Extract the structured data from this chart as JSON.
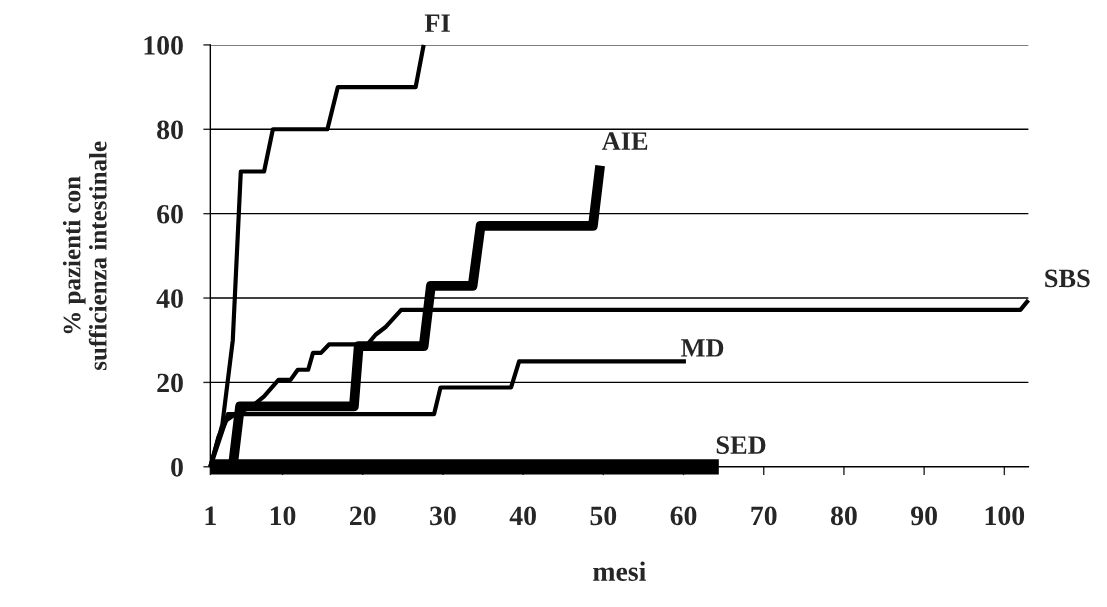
{
  "chart_data": {
    "type": "line",
    "xlabel": "mesi",
    "ylabel": "% pazienti con\nsufficienza intestinale",
    "xlim": [
      1,
      103
    ],
    "xticks": [
      1,
      10,
      20,
      30,
      40,
      50,
      60,
      70,
      80,
      90,
      100
    ],
    "ylim": [
      0,
      100
    ],
    "yticks": [
      0,
      20,
      40,
      60,
      80,
      100
    ],
    "grid": "y",
    "legend": false,
    "marker": "none",
    "line_style": "solid",
    "series": [
      {
        "name": "FI",
        "color": "#000000",
        "x": [
          1,
          2.5,
          3.8,
          4.3,
          4.8,
          7.7,
          8.8,
          15.6,
          16.9,
          26.6,
          27.6
        ],
        "values": [
          0,
          10,
          30,
          50,
          70,
          70,
          80,
          80,
          90,
          90,
          100
        ]
      },
      {
        "name": "AIE",
        "color": "#000000",
        "x": [
          3.8,
          4.7,
          18.9,
          19.5,
          27.6,
          28.5,
          33.7,
          34.7,
          48.7,
          49.6
        ],
        "values": [
          0,
          14.3,
          14.3,
          28.6,
          28.6,
          42.9,
          42.9,
          57.1,
          57.1,
          71.4
        ]
      },
      {
        "name": "SBS",
        "color": "#000000",
        "x": [
          1,
          2,
          3,
          4.5,
          6,
          7.7,
          9.5,
          11,
          11.9,
          13.2,
          13.8,
          14.8,
          15.8,
          20.6,
          21.6,
          22.9,
          24.8,
          102,
          103
        ],
        "values": [
          0,
          7,
          11,
          13,
          14,
          16.7,
          20.6,
          20.6,
          23,
          23,
          27,
          27,
          29,
          29,
          31.3,
          33.2,
          37.2,
          37.2,
          39.5
        ]
      },
      {
        "name": "MD",
        "color": "#000000",
        "x": [
          1,
          3.2,
          28.9,
          29.7,
          38.5,
          39.5,
          60.3
        ],
        "values": [
          0,
          12.5,
          12.5,
          18.8,
          18.8,
          25,
          25
        ]
      },
      {
        "name": "SED",
        "color": "#000000",
        "x": [
          1,
          64.4
        ],
        "values": [
          0,
          0
        ]
      }
    ]
  }
}
